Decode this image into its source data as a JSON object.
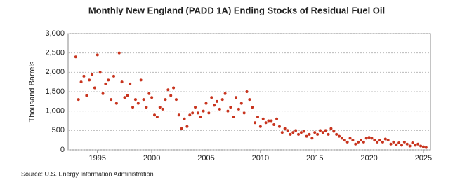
{
  "chart_data": {
    "type": "scatter",
    "title": "Monthly New England (PADD 1A) Ending Stocks of Residual Fuel Oil",
    "y_label": "Thousand Barrels",
    "source": "Source: U.S. Energy Information Administration",
    "color": "#c8341e",
    "grid": true,
    "xlim": [
      1992.3,
      2025.65
    ],
    "xticks": [
      1995,
      2000,
      2005,
      2010,
      2015,
      2020,
      2025
    ],
    "ylim": [
      0,
      3000
    ],
    "yticks": [
      0,
      500,
      {
        "value": 1000,
        "label": "1,000"
      },
      {
        "value": 1500,
        "label": "1,500"
      },
      {
        "value": 2000,
        "label": "2,000"
      },
      {
        "value": 2500,
        "label": "2,500"
      },
      {
        "value": 3000,
        "label": "3,000"
      }
    ],
    "x": [
      1993.0,
      1993.25,
      1993.5,
      1993.75,
      1994.0,
      1994.25,
      1994.5,
      1994.75,
      1995.0,
      1995.25,
      1995.5,
      1995.75,
      1996.0,
      1996.25,
      1996.5,
      1996.75,
      1997.0,
      1997.25,
      1997.5,
      1997.75,
      1998.0,
      1998.25,
      1998.5,
      1998.75,
      1999.0,
      1999.25,
      1999.5,
      1999.75,
      2000.0,
      2000.25,
      2000.5,
      2000.75,
      2001.0,
      2001.25,
      2001.5,
      2001.75,
      2002.0,
      2002.25,
      2002.5,
      2002.75,
      2003.0,
      2003.25,
      2003.5,
      2003.75,
      2004.0,
      2004.25,
      2004.5,
      2004.75,
      2005.0,
      2005.25,
      2005.5,
      2005.75,
      2006.0,
      2006.25,
      2006.5,
      2006.75,
      2007.0,
      2007.25,
      2007.5,
      2007.75,
      2008.0,
      2008.25,
      2008.5,
      2008.75,
      2009.0,
      2009.25,
      2009.5,
      2009.75,
      2010.0,
      2010.25,
      2010.5,
      2010.75,
      2011.0,
      2011.25,
      2011.5,
      2011.75,
      2012.0,
      2012.25,
      2012.5,
      2012.75,
      2013.0,
      2013.25,
      2013.5,
      2013.75,
      2014.0,
      2014.25,
      2014.5,
      2014.75,
      2015.0,
      2015.25,
      2015.5,
      2015.75,
      2016.0,
      2016.25,
      2016.5,
      2016.75,
      2017.0,
      2017.25,
      2017.5,
      2017.75,
      2018.0,
      2018.25,
      2018.5,
      2018.75,
      2019.0,
      2019.25,
      2019.5,
      2019.75,
      2020.0,
      2020.25,
      2020.5,
      2020.75,
      2021.0,
      2021.25,
      2021.5,
      2021.75,
      2022.0,
      2022.25,
      2022.5,
      2022.75,
      2023.0,
      2023.25,
      2023.5,
      2023.75,
      2024.0,
      2024.25,
      2024.5,
      2024.75,
      2025.0,
      2025.25
    ],
    "values": [
      2400,
      1300,
      1750,
      1900,
      1400,
      1800,
      1950,
      1600,
      2450,
      2000,
      1450,
      1700,
      1800,
      1300,
      1900,
      1200,
      2500,
      1750,
      1350,
      1400,
      1700,
      1100,
      1300,
      1200,
      1800,
      1300,
      1100,
      1450,
      1350,
      900,
      850,
      1100,
      1050,
      1300,
      1550,
      1400,
      1600,
      1300,
      900,
      550,
      800,
      600,
      900,
      950,
      1100,
      950,
      850,
      1000,
      1200,
      950,
      1350,
      1150,
      1250,
      1050,
      1300,
      1450,
      1000,
      1100,
      850,
      1350,
      1050,
      1200,
      950,
      1500,
      1300,
      1100,
      700,
      850,
      600,
      800,
      700,
      750,
      750,
      650,
      800,
      600,
      450,
      550,
      500,
      400,
      450,
      500,
      400,
      450,
      480,
      350,
      400,
      300,
      450,
      400,
      500,
      450,
      500,
      400,
      550,
      480,
      400,
      350,
      300,
      250,
      200,
      300,
      250,
      150,
      200,
      250,
      200,
      300,
      320,
      300,
      250,
      200,
      250,
      200,
      280,
      250,
      150,
      200,
      130,
      180,
      120,
      200,
      150,
      100,
      180,
      120,
      150,
      100,
      80,
      60
    ]
  }
}
